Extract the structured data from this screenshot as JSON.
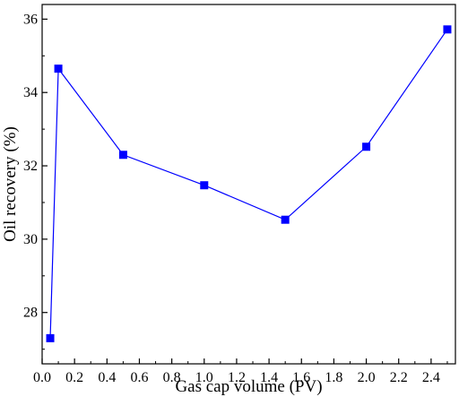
{
  "chart_data": {
    "type": "line",
    "title": "",
    "xlabel": "Gas cap volume (PV)",
    "ylabel": "Oil recovery (%)",
    "xlim": [
      0.0,
      2.55
    ],
    "ylim": [
      26.6,
      36.4
    ],
    "xticks": [
      0.0,
      0.2,
      0.4,
      0.6,
      0.8,
      1.0,
      1.2,
      1.4,
      1.6,
      1.8,
      2.0,
      2.2,
      2.4
    ],
    "xtick_labels": [
      "0.0",
      "0.2",
      "0.4",
      "0.6",
      "0.8",
      "1.0",
      "1.2",
      "1.4",
      "1.6",
      "1.8",
      "2.0",
      "2.2",
      "2.4"
    ],
    "yticks": [
      28,
      30,
      32,
      34,
      36
    ],
    "ytick_labels": [
      "28",
      "30",
      "32",
      "34",
      "36"
    ],
    "grid": false,
    "legend": "none",
    "marker": "square",
    "series": [
      {
        "color": "#0000ff",
        "x": [
          0.05,
          0.1,
          0.5,
          1.0,
          1.5,
          2.0,
          2.5
        ],
        "y": [
          27.3,
          34.65,
          32.3,
          31.47,
          30.53,
          32.52,
          35.72
        ]
      }
    ]
  }
}
